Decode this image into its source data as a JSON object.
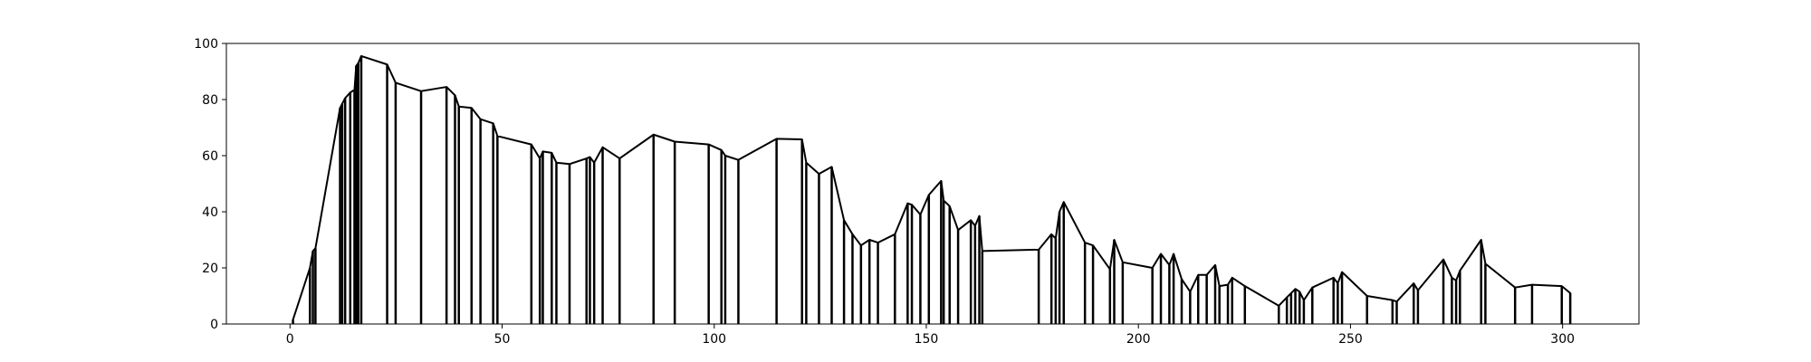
{
  "chart_data": {
    "type": "line",
    "title": "",
    "xlabel": "",
    "ylabel": "",
    "xlim": [
      -15,
      318
    ],
    "ylim": [
      0,
      100
    ],
    "xticks": [
      0,
      50,
      100,
      150,
      200,
      250,
      300
    ],
    "yticks": [
      0,
      20,
      40,
      60,
      80,
      100
    ],
    "xtick_labels": [
      "0",
      "50",
      "100",
      "150",
      "200",
      "250",
      "300"
    ],
    "ytick_labels": [
      "0",
      "20",
      "40",
      "60",
      "80",
      "100"
    ],
    "grid": false,
    "legend": null,
    "line_color": "#000000",
    "drop_lines": true,
    "points": [
      [
        0.7,
        0.0
      ],
      [
        0.7,
        1.5
      ],
      [
        4.7,
        20.0
      ],
      [
        5.4,
        26.0
      ],
      [
        6,
        27.0
      ],
      [
        11.8,
        77.0
      ],
      [
        12.3,
        78.5
      ],
      [
        13,
        80.5
      ],
      [
        14.2,
        82.5
      ],
      [
        15.2,
        83.5
      ],
      [
        15.6,
        92.0
      ],
      [
        16.1,
        93.0
      ],
      [
        16.8,
        95.5
      ],
      [
        22.9,
        92.5
      ],
      [
        24.9,
        86.0
      ],
      [
        30.9,
        83.0
      ],
      [
        36.9,
        84.5
      ],
      [
        38.9,
        81.5
      ],
      [
        39.8,
        77.5
      ],
      [
        42.8,
        77.0
      ],
      [
        44.9,
        73.0
      ],
      [
        47.9,
        71.5
      ],
      [
        48.9,
        67.0
      ],
      [
        56.9,
        64.0
      ],
      [
        58.9,
        59.0
      ],
      [
        59.6,
        61.5
      ],
      [
        61.7,
        61.0
      ],
      [
        62.8,
        57.5
      ],
      [
        65.9,
        57.0
      ],
      [
        69.9,
        59.0
      ],
      [
        70.7,
        59.5
      ],
      [
        71.7,
        57.5
      ],
      [
        73.7,
        63.0
      ],
      [
        77.7,
        59.0
      ],
      [
        85.7,
        67.5
      ],
      [
        90.7,
        65.0
      ],
      [
        98.7,
        64.0
      ],
      [
        101.7,
        62.0
      ],
      [
        102.6,
        60.0
      ],
      [
        105.7,
        58.5
      ],
      [
        114.7,
        66.0
      ],
      [
        120.7,
        65.8
      ],
      [
        121.7,
        57.5
      ],
      [
        124.7,
        53.5
      ],
      [
        127.7,
        56.0
      ],
      [
        130.6,
        37.0
      ],
      [
        132.6,
        32.0
      ],
      [
        134.6,
        28.0
      ],
      [
        136.6,
        30.0
      ],
      [
        138.6,
        29.0
      ],
      [
        142.6,
        32.0
      ],
      [
        145.6,
        43.0
      ],
      [
        146.6,
        42.5
      ],
      [
        148.6,
        39.0
      ],
      [
        150.6,
        46.0
      ],
      [
        153.5,
        51.0
      ],
      [
        154.1,
        44.0
      ],
      [
        155.5,
        42.0
      ],
      [
        157.5,
        33.5
      ],
      [
        160.5,
        37.0
      ],
      [
        161.5,
        35.0
      ],
      [
        162.5,
        38.5
      ],
      [
        163.2,
        26.0
      ],
      [
        176.5,
        26.5
      ],
      [
        179.5,
        32.0
      ],
      [
        180.5,
        30.5
      ],
      [
        181.4,
        40.0
      ],
      [
        182.4,
        43.5
      ],
      [
        187.4,
        29.0
      ],
      [
        189.3,
        28.0
      ],
      [
        193.3,
        19.5
      ],
      [
        194.3,
        30.0
      ],
      [
        196.3,
        22.0
      ],
      [
        203.3,
        20.0
      ],
      [
        205.3,
        25.0
      ],
      [
        207.3,
        21.0
      ],
      [
        208.3,
        25.0
      ],
      [
        210.2,
        16.0
      ],
      [
        212.2,
        11.5
      ],
      [
        214.1,
        17.5
      ],
      [
        216.1,
        17.5
      ],
      [
        218.1,
        21.0
      ],
      [
        219.1,
        13.5
      ],
      [
        221.1,
        14.0
      ],
      [
        222.1,
        16.5
      ],
      [
        225.1,
        13.5
      ],
      [
        233.1,
        6.5
      ],
      [
        235.0,
        9.5
      ],
      [
        236.0,
        11.0
      ],
      [
        237.0,
        12.5
      ],
      [
        238.0,
        11.5
      ],
      [
        239.0,
        8.5
      ],
      [
        241.0,
        13.0
      ],
      [
        246.0,
        16.5
      ],
      [
        247.0,
        14.5
      ],
      [
        248.0,
        18.5
      ],
      [
        253.9,
        10.0
      ],
      [
        259.9,
        8.5
      ],
      [
        260.9,
        8.0
      ],
      [
        264.9,
        14.5
      ],
      [
        265.9,
        12.0
      ],
      [
        271.9,
        23.0
      ],
      [
        273.9,
        16.5
      ],
      [
        274.9,
        15.5
      ],
      [
        275.8,
        19.0
      ],
      [
        280.8,
        30.0
      ],
      [
        281.8,
        21.5
      ],
      [
        288.8,
        13.0
      ],
      [
        292.8,
        14.0
      ],
      [
        299.8,
        13.5
      ],
      [
        301.8,
        11.0
      ],
      [
        301.8,
        0.0
      ]
    ]
  }
}
